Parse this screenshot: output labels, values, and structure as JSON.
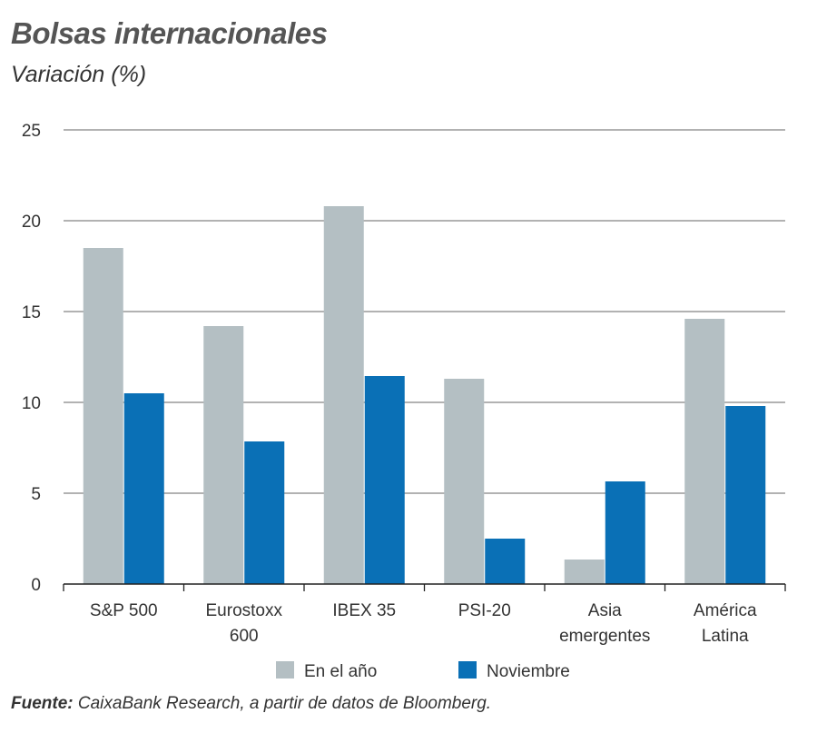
{
  "title": "Bolsas internacionales",
  "subtitle": "Variación (%)",
  "source_label": "Fuente:",
  "source_text": " CaixaBank Research, a partir de datos de Bloomberg.",
  "colors": {
    "en_el_ano": "#b4bfc3",
    "noviembre": "#0a70b6"
  },
  "chart_data": {
    "type": "bar",
    "title": "Bolsas internacionales",
    "ylabel": "Variación (%)",
    "xlabel": "",
    "ylim": [
      0,
      25
    ],
    "yticks": [
      "0",
      "5",
      "10",
      "15",
      "20",
      "25"
    ],
    "grid": true,
    "legend": "bottom",
    "categories": [
      [
        "S&P 500"
      ],
      [
        "Eurostoxx",
        "600"
      ],
      [
        "IBEX 35"
      ],
      [
        "PSI-20"
      ],
      [
        "Asia",
        "emergentes"
      ],
      [
        "América",
        "Latina"
      ]
    ],
    "series": [
      {
        "name": "En el año",
        "values": [
          18.5,
          14.2,
          20.8,
          11.3,
          1.35,
          14.6
        ]
      },
      {
        "name": "Noviembre",
        "values": [
          10.5,
          7.85,
          11.45,
          2.5,
          5.65,
          9.8
        ]
      }
    ]
  }
}
